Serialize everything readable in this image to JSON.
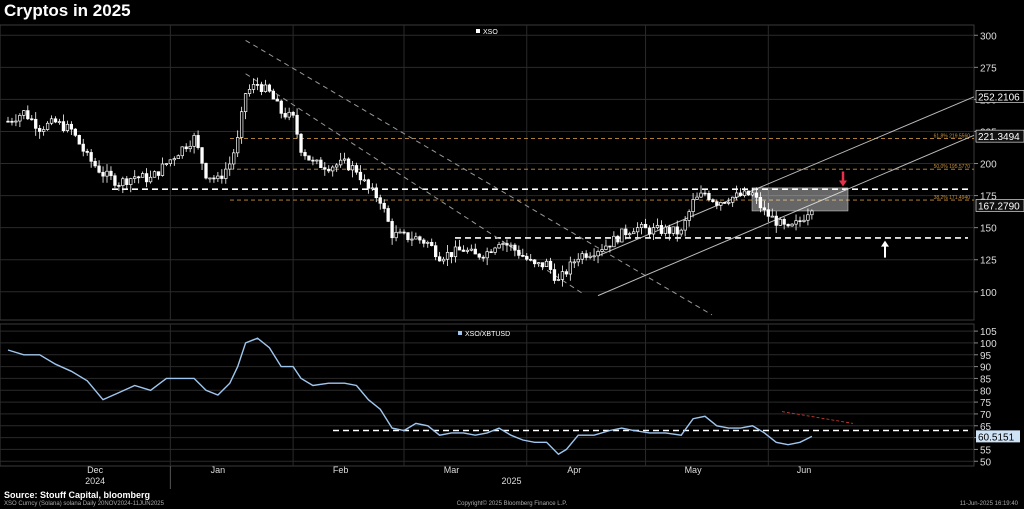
{
  "title": "Cryptos in 2025",
  "footer": {
    "source": "Source: Stouff Capital, bloomberg",
    "left": "XSO Curncy (Solana) solana  Daily 20NOV2024-11JUN2025",
    "center": "Copyright© 2025 Bloomberg Finance L.P.",
    "right": "11-Jun-2025 16:19:40"
  },
  "colors": {
    "background": "#000000",
    "grid": "#2a2a2a",
    "candle": "#ffffff",
    "ratio_line": "#9fc6ee",
    "fib": "#c8913a",
    "arrow_down": "#e8304a",
    "arrow_up": "#ffffff"
  },
  "x_axis": {
    "months": [
      "Dec",
      "Jan",
      "Feb",
      "Mar",
      "Apr",
      "May",
      "Jun"
    ],
    "year_labels": [
      "2024",
      "2025"
    ]
  },
  "chart_data": [
    {
      "type": "candlestick",
      "legend": "XSO",
      "x_range": [
        "2024-11-20",
        "2025-06-11"
      ],
      "ylim": [
        78,
        308
      ],
      "y_ticks": [
        100,
        125,
        150,
        175,
        200,
        225,
        250,
        275,
        300
      ],
      "last_value_labels": [
        "252.2106",
        "221.3494",
        "167.2790"
      ],
      "fib_labels": [
        "61.8% 219.5560",
        "50.0% 195.5770",
        "38.2% 171.4940"
      ],
      "horizontal_levels": [
        180,
        142
      ],
      "close_points": [
        {
          "x": "2024-11-20",
          "y": 233
        },
        {
          "x": "2024-11-24",
          "y": 240
        },
        {
          "x": "2024-11-28",
          "y": 228
        },
        {
          "x": "2024-12-02",
          "y": 232
        },
        {
          "x": "2024-12-06",
          "y": 226
        },
        {
          "x": "2024-12-10",
          "y": 205
        },
        {
          "x": "2024-12-14",
          "y": 192
        },
        {
          "x": "2024-12-18",
          "y": 185
        },
        {
          "x": "2024-12-22",
          "y": 190
        },
        {
          "x": "2024-12-26",
          "y": 188
        },
        {
          "x": "2024-12-30",
          "y": 200
        },
        {
          "x": "2025-01-03",
          "y": 212
        },
        {
          "x": "2025-01-06",
          "y": 220
        },
        {
          "x": "2025-01-09",
          "y": 192
        },
        {
          "x": "2025-01-12",
          "y": 187
        },
        {
          "x": "2025-01-15",
          "y": 200
        },
        {
          "x": "2025-01-17",
          "y": 218
        },
        {
          "x": "2025-01-19",
          "y": 255
        },
        {
          "x": "2025-01-22",
          "y": 262
        },
        {
          "x": "2025-01-25",
          "y": 255
        },
        {
          "x": "2025-01-28",
          "y": 240
        },
        {
          "x": "2025-01-31",
          "y": 235
        },
        {
          "x": "2025-02-02",
          "y": 212
        },
        {
          "x": "2025-02-05",
          "y": 200
        },
        {
          "x": "2025-02-09",
          "y": 198
        },
        {
          "x": "2025-02-13",
          "y": 200
        },
        {
          "x": "2025-02-16",
          "y": 195
        },
        {
          "x": "2025-02-19",
          "y": 180
        },
        {
          "x": "2025-02-22",
          "y": 172
        },
        {
          "x": "2025-02-25",
          "y": 145
        },
        {
          "x": "2025-02-28",
          "y": 143
        },
        {
          "x": "2025-03-03",
          "y": 142
        },
        {
          "x": "2025-03-06",
          "y": 138
        },
        {
          "x": "2025-03-09",
          "y": 128
        },
        {
          "x": "2025-03-12",
          "y": 130
        },
        {
          "x": "2025-03-15",
          "y": 133
        },
        {
          "x": "2025-03-18",
          "y": 128
        },
        {
          "x": "2025-03-21",
          "y": 131
        },
        {
          "x": "2025-03-24",
          "y": 140
        },
        {
          "x": "2025-03-27",
          "y": 135
        },
        {
          "x": "2025-03-30",
          "y": 128
        },
        {
          "x": "2025-04-02",
          "y": 120
        },
        {
          "x": "2025-04-05",
          "y": 122
        },
        {
          "x": "2025-04-08",
          "y": 108
        },
        {
          "x": "2025-04-10",
          "y": 116
        },
        {
          "x": "2025-04-13",
          "y": 128
        },
        {
          "x": "2025-04-17",
          "y": 132
        },
        {
          "x": "2025-04-21",
          "y": 138
        },
        {
          "x": "2025-04-24",
          "y": 145
        },
        {
          "x": "2025-04-27",
          "y": 150
        },
        {
          "x": "2025-05-01",
          "y": 148
        },
        {
          "x": "2025-05-05",
          "y": 148
        },
        {
          "x": "2025-05-09",
          "y": 146
        },
        {
          "x": "2025-05-12",
          "y": 170
        },
        {
          "x": "2025-05-15",
          "y": 177
        },
        {
          "x": "2025-05-18",
          "y": 170
        },
        {
          "x": "2025-05-21",
          "y": 173
        },
        {
          "x": "2025-05-24",
          "y": 175
        },
        {
          "x": "2025-05-27",
          "y": 176
        },
        {
          "x": "2025-05-30",
          "y": 162
        },
        {
          "x": "2025-06-02",
          "y": 155
        },
        {
          "x": "2025-06-05",
          "y": 148
        },
        {
          "x": "2025-06-08",
          "y": 155
        },
        {
          "x": "2025-06-11",
          "y": 167
        }
      ]
    },
    {
      "type": "line",
      "legend": "XSO/XBTUSD",
      "x_range": [
        "2024-11-20",
        "2025-06-11"
      ],
      "ylim": [
        48,
        108
      ],
      "y_ticks": [
        50,
        55,
        60,
        65,
        70,
        75,
        80,
        85,
        90,
        95,
        100,
        105
      ],
      "last_value_label": "60.5151",
      "horizontal_levels": [
        63
      ],
      "points": [
        {
          "x": "2024-11-20",
          "y": 97
        },
        {
          "x": "2024-11-24",
          "y": 95
        },
        {
          "x": "2024-11-28",
          "y": 95
        },
        {
          "x": "2024-12-02",
          "y": 91
        },
        {
          "x": "2024-12-06",
          "y": 88
        },
        {
          "x": "2024-12-10",
          "y": 84
        },
        {
          "x": "2024-12-14",
          "y": 76
        },
        {
          "x": "2024-12-18",
          "y": 79
        },
        {
          "x": "2024-12-22",
          "y": 82
        },
        {
          "x": "2024-12-26",
          "y": 80
        },
        {
          "x": "2024-12-30",
          "y": 85
        },
        {
          "x": "2025-01-03",
          "y": 85
        },
        {
          "x": "2025-01-06",
          "y": 85
        },
        {
          "x": "2025-01-09",
          "y": 80
        },
        {
          "x": "2025-01-12",
          "y": 78
        },
        {
          "x": "2025-01-15",
          "y": 83
        },
        {
          "x": "2025-01-17",
          "y": 90
        },
        {
          "x": "2025-01-19",
          "y": 100
        },
        {
          "x": "2025-01-22",
          "y": 102
        },
        {
          "x": "2025-01-25",
          "y": 98
        },
        {
          "x": "2025-01-28",
          "y": 90
        },
        {
          "x": "2025-01-31",
          "y": 90
        },
        {
          "x": "2025-02-02",
          "y": 85
        },
        {
          "x": "2025-02-05",
          "y": 82
        },
        {
          "x": "2025-02-09",
          "y": 83
        },
        {
          "x": "2025-02-13",
          "y": 83
        },
        {
          "x": "2025-02-16",
          "y": 82
        },
        {
          "x": "2025-02-19",
          "y": 76
        },
        {
          "x": "2025-02-22",
          "y": 72
        },
        {
          "x": "2025-02-25",
          "y": 64
        },
        {
          "x": "2025-02-28",
          "y": 63
        },
        {
          "x": "2025-03-03",
          "y": 66
        },
        {
          "x": "2025-03-06",
          "y": 65
        },
        {
          "x": "2025-03-09",
          "y": 61
        },
        {
          "x": "2025-03-12",
          "y": 62
        },
        {
          "x": "2025-03-15",
          "y": 62
        },
        {
          "x": "2025-03-18",
          "y": 61
        },
        {
          "x": "2025-03-21",
          "y": 62
        },
        {
          "x": "2025-03-24",
          "y": 64
        },
        {
          "x": "2025-03-27",
          "y": 61
        },
        {
          "x": "2025-03-30",
          "y": 59
        },
        {
          "x": "2025-04-02",
          "y": 58
        },
        {
          "x": "2025-04-05",
          "y": 58
        },
        {
          "x": "2025-04-08",
          "y": 53
        },
        {
          "x": "2025-04-10",
          "y": 55
        },
        {
          "x": "2025-04-13",
          "y": 61
        },
        {
          "x": "2025-04-17",
          "y": 61
        },
        {
          "x": "2025-04-21",
          "y": 63
        },
        {
          "x": "2025-04-24",
          "y": 64
        },
        {
          "x": "2025-04-27",
          "y": 63
        },
        {
          "x": "2025-05-01",
          "y": 62
        },
        {
          "x": "2025-05-05",
          "y": 62
        },
        {
          "x": "2025-05-09",
          "y": 61
        },
        {
          "x": "2025-05-12",
          "y": 68
        },
        {
          "x": "2025-05-15",
          "y": 69
        },
        {
          "x": "2025-05-18",
          "y": 65
        },
        {
          "x": "2025-05-21",
          "y": 64
        },
        {
          "x": "2025-05-24",
          "y": 64
        },
        {
          "x": "2025-05-27",
          "y": 65
        },
        {
          "x": "2025-05-30",
          "y": 62
        },
        {
          "x": "2025-06-02",
          "y": 58
        },
        {
          "x": "2025-06-05",
          "y": 57
        },
        {
          "x": "2025-06-08",
          "y": 58
        },
        {
          "x": "2025-06-11",
          "y": 60.5
        }
      ]
    }
  ]
}
